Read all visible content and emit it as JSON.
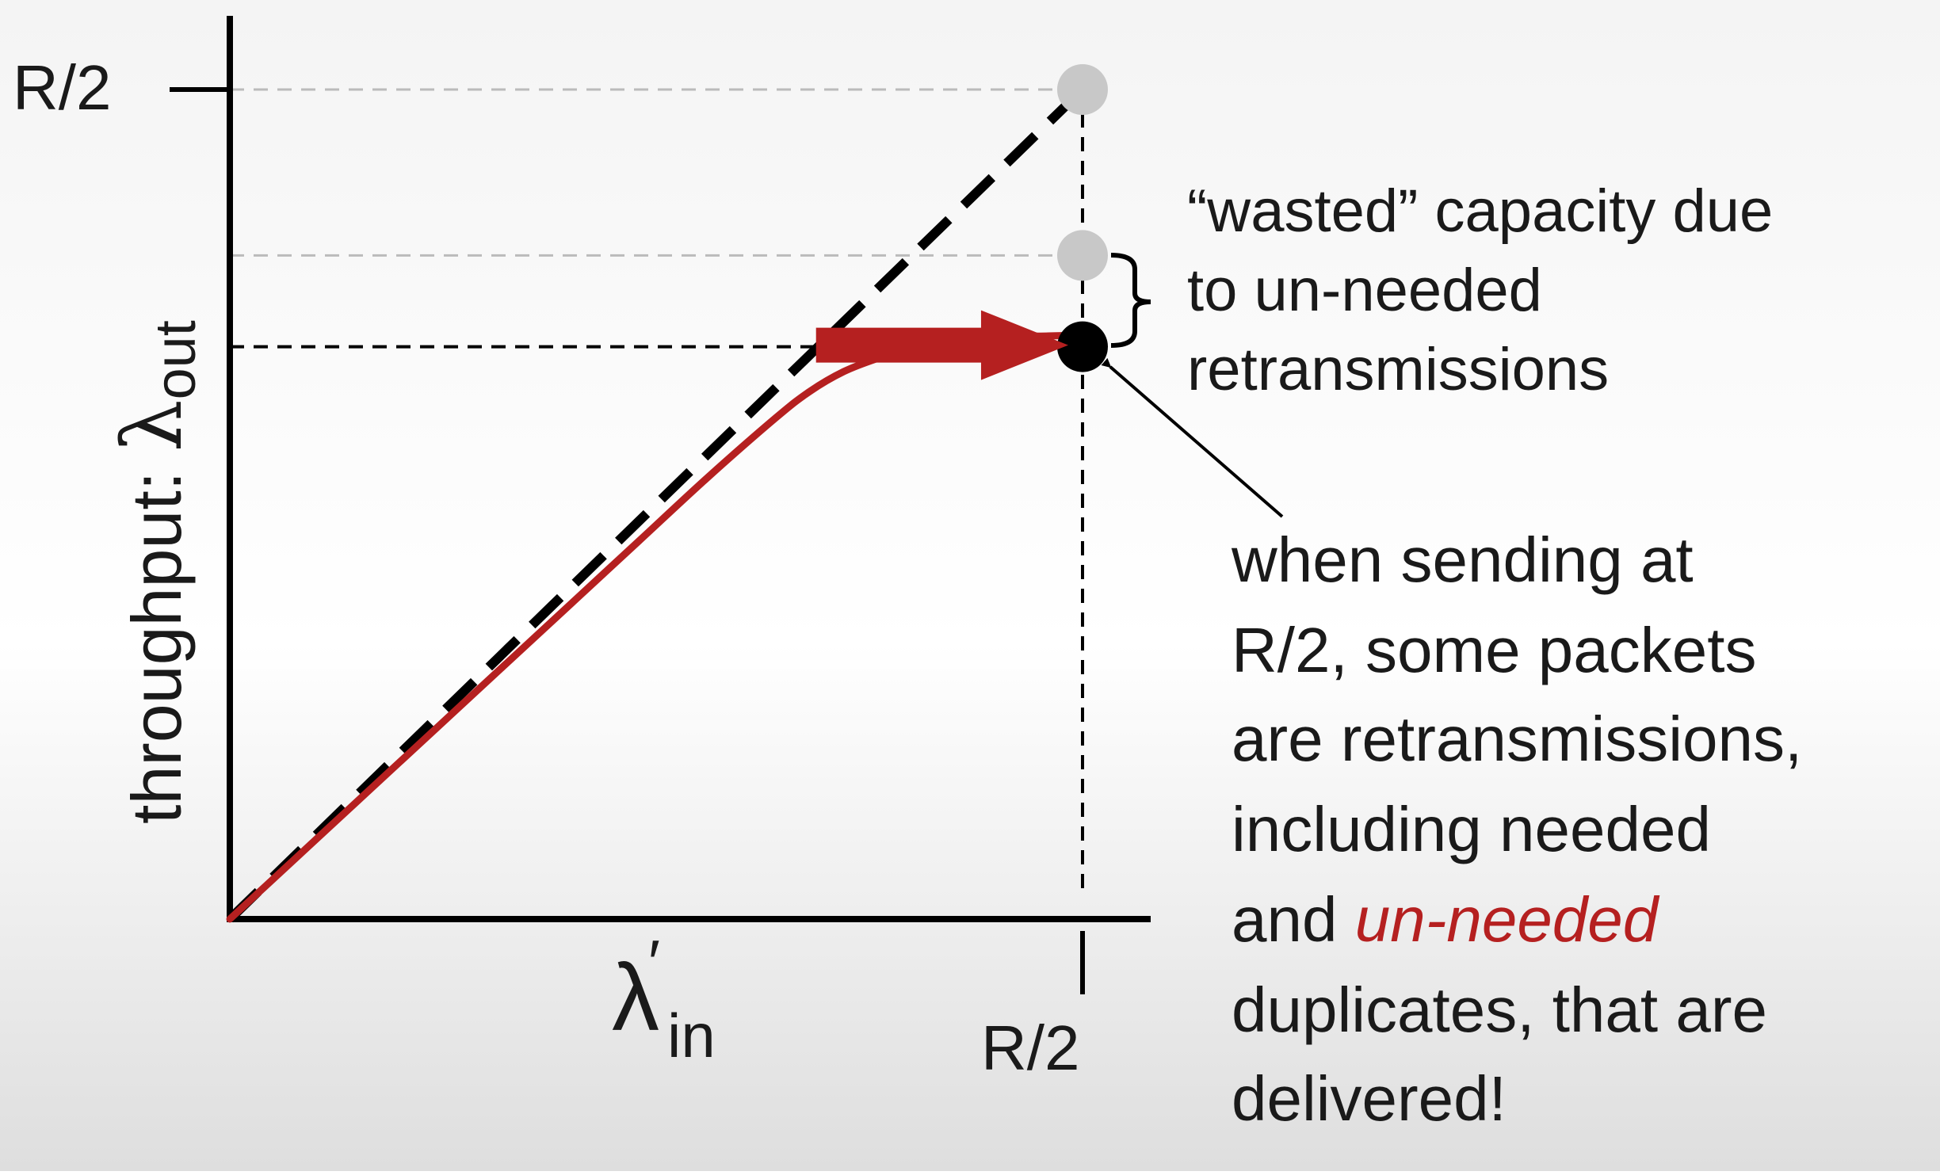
{
  "chart_data": {
    "type": "line",
    "ylabel": {
      "prefix": "throughput: ",
      "symbol": "λ",
      "subscript": "out"
    },
    "xlabel": {
      "symbol": "λ",
      "prime": "′",
      "subscript": "in"
    },
    "x_tick_label": "R/2",
    "y_tick_label": "R/2",
    "xlim": [
      0,
      0.55
    ],
    "ylim": [
      0,
      0.5
    ],
    "ideal_line": {
      "style": "dashed",
      "color": "#000000",
      "x": [
        0,
        0.5
      ],
      "y": [
        0,
        0.5
      ]
    },
    "series": [
      {
        "color": "#b52020",
        "x": [
          0,
          0.04,
          0.08,
          0.12,
          0.16,
          0.2,
          0.24,
          0.28,
          0.32,
          0.34,
          0.36,
          0.38,
          0.4,
          0.42,
          0.44,
          0.46,
          0.48,
          0.5
        ],
        "y": [
          0,
          0.038,
          0.076,
          0.114,
          0.152,
          0.19,
          0.228,
          0.266,
          0.302,
          0.318,
          0.33,
          0.338,
          0.344,
          0.348,
          0.35,
          0.351,
          0.3515,
          0.352
        ]
      }
    ],
    "points": [
      {
        "x": 0.5,
        "y": 0.5,
        "color": "#c8c8c8"
      },
      {
        "x": 0.5,
        "y": 0.4,
        "color": "#c8c8c8"
      },
      {
        "x": 0.5,
        "y": 0.345,
        "color": "#000000"
      }
    ],
    "reference_lines": [
      {
        "y": 0.5,
        "color": "#bbbbbb",
        "style": "dashed"
      },
      {
        "y": 0.4,
        "color": "#bbbbbb",
        "style": "dashed"
      },
      {
        "y": 0.345,
        "color": "#000000",
        "style": "dashed"
      },
      {
        "x": 0.5,
        "color": "#000000",
        "style": "dashed"
      }
    ],
    "red_arrow": {
      "x_start": 0.36,
      "x_end": 0.48,
      "y": 0.345,
      "color": "#b52020"
    },
    "annotations": {
      "wasted": [
        "“wasted” capacity due",
        "to un-needed",
        "retransmissions"
      ],
      "explanation": [
        "when sending at",
        "R/2, some packets",
        "are retransmissions,",
        "including needed"
      ],
      "explanation_and": "and ",
      "explanation_highlight": "un-needed",
      "explanation_highlight_color": "#b52020",
      "explanation_tail": [
        "duplicates, that are",
        "delivered!"
      ]
    }
  }
}
